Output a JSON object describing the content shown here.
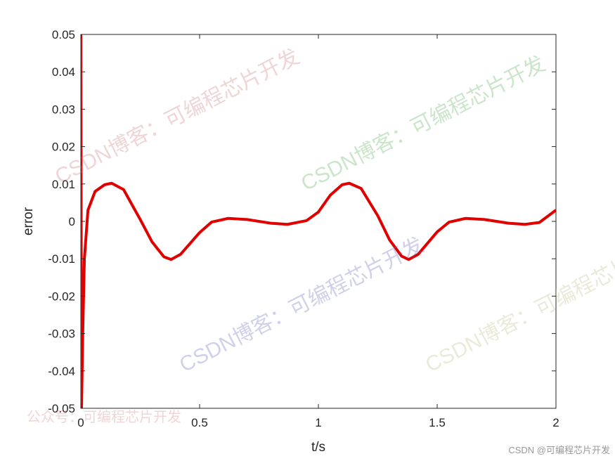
{
  "chart_data": {
    "type": "line",
    "xlabel": "t/s",
    "ylabel": "error",
    "x": [
      0,
      0.003,
      0.008,
      0.015,
      0.03,
      0.06,
      0.1,
      0.13,
      0.18,
      0.25,
      0.3,
      0.35,
      0.38,
      0.42,
      0.5,
      0.55,
      0.62,
      0.7,
      0.8,
      0.87,
      0.95,
      1.0,
      1.05,
      1.1,
      1.13,
      1.18,
      1.25,
      1.3,
      1.35,
      1.38,
      1.42,
      1.5,
      1.55,
      1.62,
      1.7,
      1.8,
      1.87,
      1.93,
      2.0
    ],
    "series": [
      {
        "color": "#e00000",
        "values": [
          0.05,
          -0.05,
          -0.03,
          -0.01,
          0.003,
          0.008,
          0.0098,
          0.0102,
          0.0085,
          0.0005,
          -0.0055,
          -0.0095,
          -0.0102,
          -0.0088,
          -0.003,
          -0.0002,
          0.0008,
          0.0005,
          -0.0005,
          -0.0008,
          0.0002,
          0.0025,
          0.007,
          0.0098,
          0.0102,
          0.0088,
          0.0015,
          -0.005,
          -0.0093,
          -0.0102,
          -0.0088,
          -0.0028,
          -0.0002,
          0.0008,
          0.0005,
          -0.0005,
          -0.0008,
          -0.0003,
          0.003
        ]
      }
    ],
    "xlim": [
      0,
      2
    ],
    "xticks": [
      0,
      0.5,
      1,
      1.5,
      2
    ],
    "ylim": [
      -0.05,
      0.05
    ],
    "yticks": [
      -0.05,
      -0.04,
      -0.03,
      -0.02,
      -0.01,
      0,
      0.01,
      0.02,
      0.03,
      0.04,
      0.05
    ],
    "grid": false,
    "watermarks": [
      "CSDN博客：可编程芯片开发",
      "CSDN博客：可编程芯片开发",
      "CSDN博客：可编程芯片开发",
      "CSDN博客：可编程芯片开发",
      "公众号：可编程芯片开发"
    ],
    "footer": "CSDN @可编程芯片开发"
  }
}
